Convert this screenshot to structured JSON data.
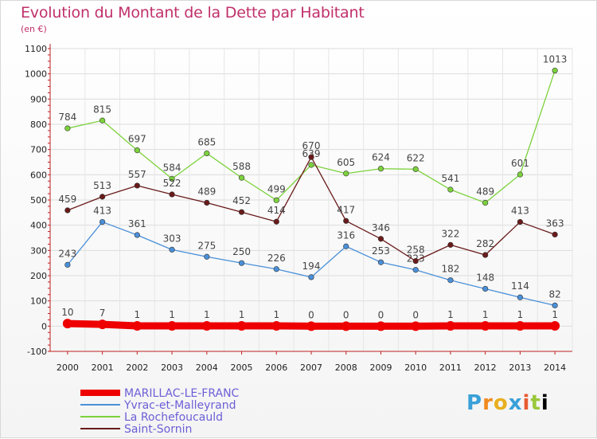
{
  "chart_data": {
    "type": "line",
    "title": "Evolution du Montant de la Dette par Habitant",
    "subtitle": "(en €)",
    "x": [
      "2000",
      "2001",
      "2002",
      "2003",
      "2004",
      "2005",
      "2006",
      "2007",
      "2008",
      "2009",
      "2010",
      "2011",
      "2012",
      "2013",
      "2014"
    ],
    "ylim": [
      -100,
      1100
    ],
    "yticks": [
      -100,
      0,
      100,
      200,
      300,
      400,
      500,
      600,
      700,
      800,
      900,
      1000,
      1100
    ],
    "grid": true,
    "legend_placement": "bottom-left",
    "series": [
      {
        "name": "MARILLAC-LE-FRANC",
        "color": "#ee0000",
        "values": [
          10,
          7,
          1,
          1,
          1,
          1,
          1,
          0,
          0,
          0,
          0,
          1,
          1,
          1,
          1
        ]
      },
      {
        "name": "Yvrac-et-Malleyrand",
        "color": "#4a90d9",
        "values": [
          243,
          413,
          361,
          303,
          275,
          250,
          226,
          194,
          316,
          253,
          223,
          182,
          148,
          114,
          82
        ]
      },
      {
        "name": "La Rochefoucauld",
        "color": "#7cd23c",
        "values": [
          784,
          815,
          697,
          584,
          685,
          588,
          499,
          639,
          605,
          624,
          622,
          541,
          489,
          601,
          1013
        ]
      },
      {
        "name": "Saint-Sornin",
        "color": "#6a1a1a",
        "values": [
          459,
          513,
          557,
          522,
          489,
          452,
          414,
          670,
          417,
          346,
          258,
          322,
          282,
          413,
          363
        ]
      }
    ]
  },
  "logo_text": [
    "P",
    "r",
    "o",
    "x",
    "i",
    "t",
    "i"
  ]
}
